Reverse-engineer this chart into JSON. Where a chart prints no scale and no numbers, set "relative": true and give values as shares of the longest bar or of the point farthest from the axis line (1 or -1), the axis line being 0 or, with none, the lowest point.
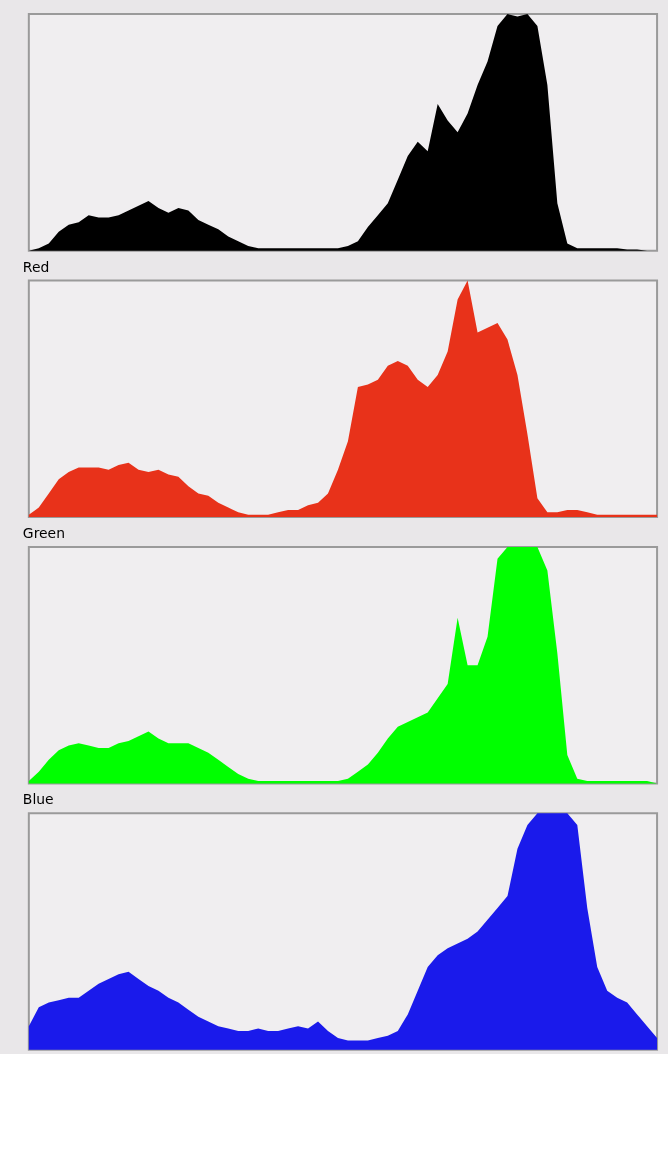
{
  "chart_data": [
    {
      "type": "area",
      "relative": true,
      "categories": [
        null,
        null,
        null,
        null,
        null,
        null,
        null,
        null,
        null,
        null,
        null,
        null,
        null,
        null,
        null,
        null,
        null,
        null,
        null,
        null,
        null,
        null,
        null,
        null,
        null,
        null,
        null,
        null,
        null,
        null,
        null,
        null,
        null,
        null,
        null,
        null,
        null,
        null,
        null,
        null,
        null,
        null,
        null,
        null,
        null,
        null,
        null,
        null,
        null,
        null,
        null,
        null,
        null,
        null,
        null,
        null,
        null,
        null,
        null,
        null,
        null,
        null,
        null,
        null
      ],
      "series": [
        {
          "color": "#000000",
          "values": [
            0,
            0.01,
            0.03,
            0.08,
            0.11,
            0.12,
            0.15,
            0.14,
            0.14,
            0.15,
            0.17,
            0.19,
            0.21,
            0.18,
            0.16,
            0.18,
            0.17,
            0.13,
            0.11,
            0.09,
            0.06,
            0.04,
            0.02,
            0.01,
            0.01,
            0.01,
            0.01,
            0.01,
            0.01,
            0.01,
            0.01,
            0.01,
            0.02,
            0.04,
            0.1,
            0.15,
            0.2,
            0.3,
            0.4,
            0.46,
            0.42,
            0.62,
            0.55,
            0.5,
            0.58,
            0.7,
            0.8,
            0.95,
            1.0,
            0.99,
            1.0,
            0.95,
            0.7,
            0.2,
            0.03,
            0.01,
            0.01,
            0.01,
            0.01,
            0.01,
            0.005,
            0.005,
            0,
            0
          ]
        }
      ]
    },
    {
      "type": "area",
      "relative": true,
      "title": "Red",
      "categories": [
        null,
        null,
        null,
        null,
        null,
        null,
        null,
        null,
        null,
        null,
        null,
        null,
        null,
        null,
        null,
        null,
        null,
        null,
        null,
        null,
        null,
        null,
        null,
        null,
        null,
        null,
        null,
        null,
        null,
        null,
        null,
        null,
        null,
        null,
        null,
        null,
        null,
        null,
        null,
        null,
        null,
        null,
        null,
        null,
        null,
        null,
        null,
        null,
        null,
        null,
        null,
        null,
        null,
        null,
        null,
        null,
        null,
        null,
        null,
        null,
        null,
        null,
        null,
        null
      ],
      "series": [
        {
          "color": "#e8321a",
          "values": [
            0.01,
            0.04,
            0.1,
            0.16,
            0.19,
            0.21,
            0.21,
            0.21,
            0.2,
            0.22,
            0.23,
            0.2,
            0.19,
            0.2,
            0.18,
            0.17,
            0.13,
            0.1,
            0.09,
            0.06,
            0.04,
            0.02,
            0.01,
            0.01,
            0.01,
            0.02,
            0.03,
            0.03,
            0.05,
            0.06,
            0.1,
            0.2,
            0.32,
            0.55,
            0.56,
            0.58,
            0.64,
            0.66,
            0.64,
            0.58,
            0.55,
            0.6,
            0.7,
            0.92,
            1.0,
            0.78,
            0.8,
            0.82,
            0.75,
            0.6,
            0.35,
            0.08,
            0.02,
            0.02,
            0.03,
            0.03,
            0.02,
            0.01,
            0.01,
            0.01,
            0.01,
            0.01,
            0.01,
            0.01
          ]
        }
      ]
    },
    {
      "type": "area",
      "relative": true,
      "title": "Green",
      "categories": [
        null,
        null,
        null,
        null,
        null,
        null,
        null,
        null,
        null,
        null,
        null,
        null,
        null,
        null,
        null,
        null,
        null,
        null,
        null,
        null,
        null,
        null,
        null,
        null,
        null,
        null,
        null,
        null,
        null,
        null,
        null,
        null,
        null,
        null,
        null,
        null,
        null,
        null,
        null,
        null,
        null,
        null,
        null,
        null,
        null,
        null,
        null,
        null,
        null,
        null,
        null,
        null,
        null,
        null,
        null,
        null,
        null,
        null,
        null,
        null,
        null,
        null,
        null,
        null
      ],
      "series": [
        {
          "color": "#00ff00",
          "values": [
            0.01,
            0.05,
            0.1,
            0.14,
            0.16,
            0.17,
            0.16,
            0.15,
            0.15,
            0.17,
            0.18,
            0.2,
            0.22,
            0.19,
            0.17,
            0.17,
            0.17,
            0.15,
            0.13,
            0.1,
            0.07,
            0.04,
            0.02,
            0.01,
            0.01,
            0.01,
            0.01,
            0.01,
            0.01,
            0.01,
            0.01,
            0.01,
            0.02,
            0.05,
            0.08,
            0.13,
            0.19,
            0.24,
            0.26,
            0.28,
            0.3,
            0.36,
            0.42,
            0.7,
            0.5,
            0.5,
            0.62,
            0.95,
            1.0,
            1.0,
            1.0,
            1.0,
            0.9,
            0.55,
            0.12,
            0.02,
            0.01,
            0.01,
            0.01,
            0.01,
            0.01,
            0.01,
            0.01,
            0
          ]
        }
      ]
    },
    {
      "type": "area",
      "relative": true,
      "title": "Blue",
      "categories": [
        null,
        null,
        null,
        null,
        null,
        null,
        null,
        null,
        null,
        null,
        null,
        null,
        null,
        null,
        null,
        null,
        null,
        null,
        null,
        null,
        null,
        null,
        null,
        null,
        null,
        null,
        null,
        null,
        null,
        null,
        null,
        null,
        null,
        null,
        null,
        null,
        null,
        null,
        null,
        null,
        null,
        null,
        null,
        null,
        null,
        null,
        null,
        null,
        null,
        null,
        null,
        null,
        null,
        null,
        null,
        null,
        null,
        null,
        null,
        null,
        null,
        null,
        null,
        null
      ],
      "series": [
        {
          "color": "#1a1aeb",
          "values": [
            0.1,
            0.18,
            0.2,
            0.21,
            0.22,
            0.22,
            0.25,
            0.28,
            0.3,
            0.32,
            0.33,
            0.3,
            0.27,
            0.25,
            0.22,
            0.2,
            0.17,
            0.14,
            0.12,
            0.1,
            0.09,
            0.08,
            0.08,
            0.09,
            0.08,
            0.08,
            0.09,
            0.1,
            0.09,
            0.12,
            0.08,
            0.05,
            0.04,
            0.04,
            0.04,
            0.05,
            0.06,
            0.08,
            0.15,
            0.25,
            0.35,
            0.4,
            0.43,
            0.45,
            0.47,
            0.5,
            0.55,
            0.6,
            0.65,
            0.85,
            0.95,
            1.0,
            1.0,
            1.0,
            1.0,
            0.95,
            0.6,
            0.35,
            0.25,
            0.22,
            0.2,
            0.15,
            0.1,
            0.05
          ]
        }
      ]
    }
  ]
}
